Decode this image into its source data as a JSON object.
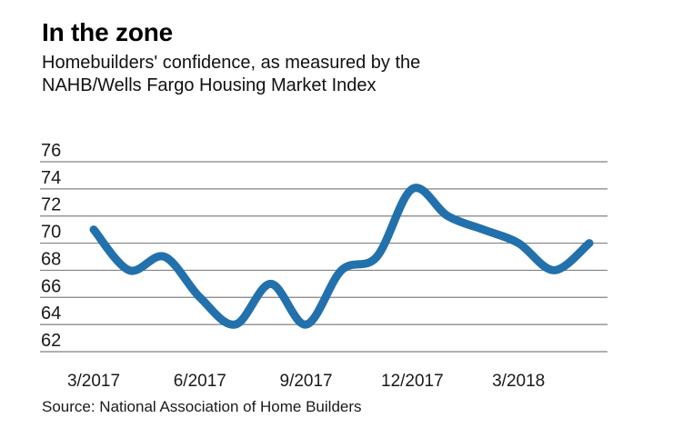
{
  "header": {
    "title": "In the zone",
    "subtitle": "Homebuilders' confidence, as measured by the\nNAHB/Wells Fargo Housing Market Index"
  },
  "chart_data": {
    "type": "line",
    "title": "In the zone",
    "subtitle": "Homebuilders' confidence, as measured by the NAHB/Wells Fargo Housing Market Index",
    "x": [
      "3/2017",
      "4/2017",
      "5/2017",
      "6/2017",
      "7/2017",
      "8/2017",
      "9/2017",
      "10/2017",
      "11/2017",
      "12/2017",
      "1/2018",
      "2/2018",
      "3/2018",
      "4/2018",
      "5/2018"
    ],
    "series": [
      {
        "name": "NAHB/Wells Fargo Housing Market Index",
        "values": [
          71,
          68,
          69,
          66,
          64,
          67,
          64,
          68,
          69,
          74,
          72,
          71,
          70,
          68,
          70
        ]
      }
    ],
    "x_tick_labels": [
      "3/2017",
      "6/2017",
      "9/2017",
      "12/2017",
      "3/2018"
    ],
    "x_tick_indices": [
      0,
      3,
      6,
      9,
      12
    ],
    "y_ticks": [
      76,
      74,
      72,
      70,
      68,
      66,
      64,
      62
    ],
    "ylim": [
      62,
      76
    ],
    "grid": true,
    "legend": false,
    "line_color": "#2271AC",
    "grid_color": "#828282",
    "text_color": "#1a1a1a"
  },
  "source": {
    "label": "Source: National Association of Home Builders"
  }
}
